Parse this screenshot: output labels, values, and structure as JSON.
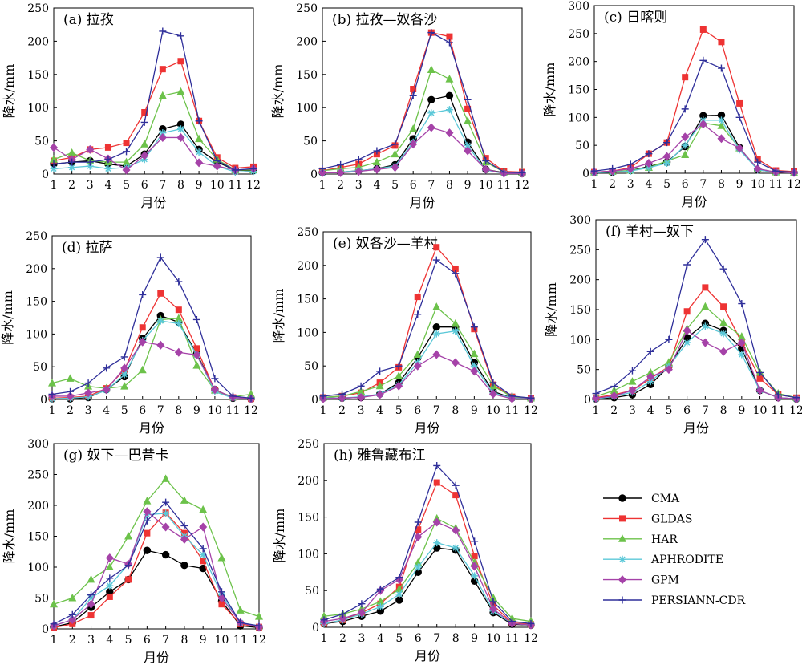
{
  "legend": {
    "entries": [
      {
        "name": "CMA",
        "color": "#000000",
        "marker": "circle"
      },
      {
        "name": "GLDAS",
        "color": "#ee3333",
        "marker": "square"
      },
      {
        "name": "HAR",
        "color": "#6cc24a",
        "marker": "triangle"
      },
      {
        "name": "APHRODITE",
        "color": "#5bc8d8",
        "marker": "asterisk"
      },
      {
        "name": "GPM",
        "color": "#a542a8",
        "marker": "diamond"
      },
      {
        "name": "PERSIANN-CDR",
        "color": "#2f2f9a",
        "marker": "plus"
      }
    ]
  },
  "chart_data": [
    {
      "type": "line",
      "title": "(a) 拉孜",
      "xlabel": "月份",
      "ylabel": "降水/mm",
      "x": [
        1,
        2,
        3,
        4,
        5,
        6,
        7,
        8,
        9,
        10,
        11,
        12
      ],
      "xlim": [
        1,
        12
      ],
      "ylim": [
        0,
        250
      ],
      "yticks": [
        0,
        50,
        100,
        150,
        200,
        250
      ],
      "legend": "bottom-right",
      "series": [
        {
          "name": "CMA",
          "values": [
            15,
            18,
            20,
            15,
            12,
            30,
            68,
            75,
            37,
            18,
            6,
            5
          ]
        },
        {
          "name": "GLDAS",
          "values": [
            20,
            25,
            37,
            40,
            47,
            93,
            158,
            170,
            80,
            25,
            9,
            11
          ]
        },
        {
          "name": "HAR",
          "values": [
            22,
            32,
            20,
            18,
            18,
            45,
            118,
            124,
            53,
            22,
            6,
            6
          ]
        },
        {
          "name": "APHRODITE",
          "values": [
            8,
            10,
            12,
            8,
            10,
            22,
            62,
            68,
            33,
            12,
            3,
            4
          ]
        },
        {
          "name": "GPM",
          "values": [
            40,
            22,
            37,
            23,
            6,
            28,
            55,
            55,
            17,
            12,
            6,
            8
          ]
        },
        {
          "name": "PERSIANN-CDR",
          "values": [
            15,
            18,
            18,
            22,
            34,
            78,
            215,
            208,
            80,
            20,
            6,
            8
          ]
        }
      ]
    },
    {
      "type": "line",
      "title": "(b) 拉孜—奴各沙",
      "xlabel": "月份",
      "ylabel": "降水/mm",
      "x": [
        1,
        2,
        3,
        4,
        5,
        6,
        7,
        8,
        9,
        10,
        11,
        12
      ],
      "xlim": [
        1,
        12
      ],
      "ylim": [
        0,
        250
      ],
      "yticks": [
        0,
        50,
        100,
        150,
        200,
        250
      ],
      "series": [
        {
          "name": "CMA",
          "values": [
            2,
            3,
            5,
            8,
            14,
            53,
            112,
            118,
            48,
            7,
            2,
            1
          ]
        },
        {
          "name": "GLDAS",
          "values": [
            5,
            10,
            15,
            30,
            43,
            128,
            213,
            207,
            98,
            24,
            4,
            3
          ]
        },
        {
          "name": "HAR",
          "values": [
            5,
            8,
            10,
            18,
            30,
            68,
            157,
            143,
            80,
            18,
            3,
            2
          ]
        },
        {
          "name": "APHRODITE",
          "values": [
            2,
            3,
            5,
            8,
            12,
            48,
            92,
            97,
            43,
            6,
            1,
            1
          ]
        },
        {
          "name": "GPM",
          "values": [
            2,
            2,
            4,
            7,
            10,
            45,
            70,
            62,
            35,
            7,
            1,
            1
          ]
        },
        {
          "name": "PERSIANN-CDR",
          "values": [
            8,
            14,
            22,
            35,
            45,
            118,
            213,
            198,
            112,
            20,
            3,
            2
          ]
        }
      ]
    },
    {
      "type": "line",
      "title": "(c) 日喀则",
      "xlabel": "月份",
      "ylabel": "降水/mm",
      "x": [
        1,
        2,
        3,
        4,
        5,
        6,
        7,
        8,
        9,
        10,
        11,
        12
      ],
      "xlim": [
        1,
        12
      ],
      "ylim": [
        0,
        300
      ],
      "yticks": [
        0,
        50,
        100,
        150,
        200,
        250,
        300
      ],
      "series": [
        {
          "name": "CMA",
          "values": [
            1,
            2,
            5,
            12,
            20,
            48,
            103,
            104,
            46,
            6,
            2,
            1
          ]
        },
        {
          "name": "GLDAS",
          "values": [
            2,
            4,
            10,
            35,
            55,
            172,
            257,
            235,
            125,
            25,
            5,
            3
          ]
        },
        {
          "name": "HAR",
          "values": [
            2,
            3,
            5,
            10,
            22,
            33,
            90,
            85,
            45,
            8,
            2,
            1
          ]
        },
        {
          "name": "APHRODITE",
          "values": [
            1,
            2,
            4,
            10,
            18,
            50,
            95,
            95,
            42,
            6,
            2,
            1
          ]
        },
        {
          "name": "GPM",
          "values": [
            2,
            4,
            8,
            18,
            30,
            65,
            88,
            62,
            45,
            8,
            2,
            1
          ]
        },
        {
          "name": "PERSIANN-CDR",
          "values": [
            4,
            8,
            16,
            35,
            55,
            115,
            202,
            188,
            100,
            20,
            4,
            2
          ]
        }
      ]
    },
    {
      "type": "line",
      "title": "(d) 拉萨",
      "xlabel": "月份",
      "ylabel": "降水/mm",
      "x": [
        1,
        2,
        3,
        4,
        5,
        6,
        7,
        8,
        9,
        10,
        11,
        12
      ],
      "xlim": [
        1,
        12
      ],
      "ylim": [
        0,
        250
      ],
      "yticks": [
        0,
        50,
        100,
        150,
        200,
        250
      ],
      "series": [
        {
          "name": "CMA",
          "values": [
            1,
            1,
            3,
            15,
            35,
            93,
            128,
            118,
            70,
            15,
            2,
            1
          ]
        },
        {
          "name": "GLDAS",
          "values": [
            2,
            3,
            5,
            17,
            45,
            110,
            162,
            137,
            78,
            14,
            3,
            1
          ]
        },
        {
          "name": "HAR",
          "values": [
            25,
            32,
            20,
            17,
            20,
            45,
            122,
            124,
            52,
            14,
            4,
            8
          ]
        },
        {
          "name": "APHRODITE",
          "values": [
            1,
            2,
            4,
            14,
            38,
            90,
            120,
            116,
            68,
            12,
            2,
            1
          ]
        },
        {
          "name": "GPM",
          "values": [
            5,
            5,
            10,
            15,
            48,
            88,
            83,
            72,
            68,
            15,
            3,
            1
          ]
        },
        {
          "name": "PERSIANN-CDR",
          "values": [
            8,
            12,
            25,
            48,
            65,
            160,
            217,
            180,
            122,
            32,
            5,
            2
          ]
        }
      ]
    },
    {
      "type": "line",
      "title": "(e) 奴各沙—羊村",
      "xlabel": "月份",
      "ylabel": "降水/mm",
      "x": [
        1,
        2,
        3,
        4,
        5,
        6,
        7,
        8,
        9,
        10,
        11,
        12
      ],
      "xlim": [
        1,
        12
      ],
      "ylim": [
        0,
        250
      ],
      "yticks": [
        0,
        50,
        100,
        150,
        200,
        250
      ],
      "series": [
        {
          "name": "CMA",
          "values": [
            2,
            2,
            3,
            8,
            25,
            62,
            108,
            108,
            55,
            12,
            2,
            1
          ]
        },
        {
          "name": "GLDAS",
          "values": [
            3,
            5,
            10,
            25,
            48,
            153,
            227,
            195,
            105,
            22,
            4,
            2
          ]
        },
        {
          "name": "HAR",
          "values": [
            3,
            5,
            12,
            20,
            35,
            67,
            138,
            113,
            68,
            20,
            4,
            2
          ]
        },
        {
          "name": "APHRODITE",
          "values": [
            2,
            2,
            4,
            8,
            22,
            55,
            98,
            102,
            50,
            10,
            2,
            1
          ]
        },
        {
          "name": "GPM",
          "values": [
            1,
            2,
            3,
            7,
            20,
            50,
            67,
            55,
            42,
            8,
            1,
            1
          ]
        },
        {
          "name": "PERSIANN-CDR",
          "values": [
            5,
            8,
            20,
            42,
            50,
            127,
            208,
            188,
            108,
            25,
            5,
            2
          ]
        }
      ]
    },
    {
      "type": "line",
      "title": "(f) 羊村—奴下",
      "xlabel": "月份",
      "ylabel": "降水/mm",
      "x": [
        1,
        2,
        3,
        4,
        5,
        6,
        7,
        8,
        9,
        10,
        11,
        12
      ],
      "xlim": [
        1,
        12
      ],
      "ylim": [
        0,
        300
      ],
      "yticks": [
        0,
        50,
        100,
        150,
        200,
        250,
        300
      ],
      "series": [
        {
          "name": "CMA",
          "values": [
            1,
            3,
            8,
            25,
            55,
            103,
            127,
            115,
            85,
            15,
            3,
            1
          ]
        },
        {
          "name": "GLDAS",
          "values": [
            3,
            8,
            15,
            35,
            55,
            147,
            187,
            155,
            95,
            35,
            8,
            3
          ]
        },
        {
          "name": "HAR",
          "values": [
            5,
            15,
            30,
            45,
            62,
            118,
            155,
            128,
            105,
            45,
            10,
            3
          ]
        },
        {
          "name": "APHRODITE",
          "values": [
            1,
            5,
            12,
            30,
            55,
            95,
            122,
            110,
            75,
            15,
            3,
            1
          ]
        },
        {
          "name": "GPM",
          "values": [
            2,
            6,
            15,
            38,
            50,
            115,
            95,
            80,
            95,
            15,
            3,
            1
          ]
        },
        {
          "name": "PERSIANN-CDR",
          "values": [
            10,
            22,
            48,
            80,
            100,
            225,
            267,
            218,
            160,
            45,
            8,
            3
          ]
        }
      ]
    },
    {
      "type": "line",
      "title": "(g) 奴下—巴昔卡",
      "xlabel": "月份",
      "ylabel": "降水/mm",
      "x": [
        1,
        2,
        3,
        4,
        5,
        6,
        7,
        8,
        9,
        10,
        11,
        12
      ],
      "xlim": [
        1,
        12
      ],
      "ylim": [
        0,
        300
      ],
      "yticks": [
        0,
        50,
        100,
        150,
        200,
        250,
        300
      ],
      "series": [
        {
          "name": "CMA",
          "values": [
            3,
            10,
            35,
            60,
            80,
            127,
            120,
            103,
            98,
            45,
            5,
            2
          ]
        },
        {
          "name": "GLDAS",
          "values": [
            2,
            8,
            22,
            52,
            80,
            155,
            188,
            155,
            110,
            40,
            8,
            3
          ]
        },
        {
          "name": "HAR",
          "values": [
            40,
            50,
            80,
            100,
            150,
            207,
            243,
            208,
            193,
            115,
            30,
            20
          ]
        },
        {
          "name": "APHRODITE",
          "values": [
            5,
            15,
            50,
            70,
            105,
            185,
            187,
            150,
            120,
            55,
            10,
            3
          ]
        },
        {
          "name": "GPM",
          "values": [
            5,
            15,
            40,
            115,
            105,
            190,
            165,
            145,
            165,
            50,
            10,
            3
          ]
        },
        {
          "name": "PERSIANN-CDR",
          "values": [
            8,
            23,
            55,
            82,
            103,
            175,
            205,
            167,
            130,
            60,
            10,
            5
          ]
        }
      ]
    },
    {
      "type": "line",
      "title": "(h) 雅鲁藏布江",
      "xlabel": "月份",
      "ylabel": "降水/mm",
      "x": [
        1,
        2,
        3,
        4,
        5,
        6,
        7,
        8,
        9,
        10,
        11,
        12
      ],
      "xlim": [
        1,
        12
      ],
      "ylim": [
        0,
        250
      ],
      "yticks": [
        0,
        50,
        100,
        150,
        200,
        250
      ],
      "series": [
        {
          "name": "CMA",
          "values": [
            5,
            8,
            15,
            22,
            37,
            75,
            108,
            105,
            63,
            20,
            4,
            3
          ]
        },
        {
          "name": "GLDAS",
          "values": [
            5,
            10,
            20,
            32,
            55,
            133,
            197,
            180,
            97,
            30,
            6,
            4
          ]
        },
        {
          "name": "HAR",
          "values": [
            15,
            18,
            25,
            35,
            52,
            88,
            148,
            135,
            88,
            40,
            12,
            8
          ]
        },
        {
          "name": "APHRODITE",
          "values": [
            5,
            10,
            18,
            28,
            45,
            82,
            115,
            108,
            70,
            22,
            5,
            3
          ]
        },
        {
          "name": "GPM",
          "values": [
            8,
            12,
            20,
            50,
            65,
            123,
            143,
            132,
            83,
            25,
            5,
            3
          ]
        },
        {
          "name": "PERSIANN-CDR",
          "values": [
            10,
            18,
            32,
            52,
            68,
            143,
            220,
            193,
            117,
            35,
            8,
            5
          ]
        }
      ]
    }
  ]
}
